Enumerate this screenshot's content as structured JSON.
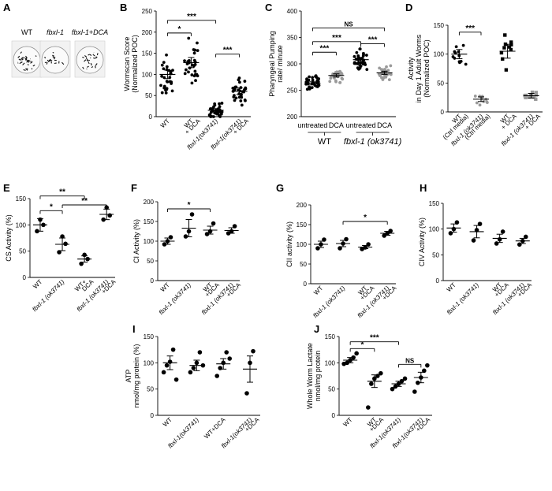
{
  "figure": {
    "panel_a": {
      "letter": "A",
      "labels": [
        "WT",
        "fbxl-1",
        "fbxl-1+DCA"
      ]
    }
  },
  "chart_data": [
    {
      "id": "B",
      "letter": "B",
      "type": "scatter",
      "ylabel_lines": [
        "Wormscan Score",
        "(Normalized POC)"
      ],
      "ylim": [
        0,
        250
      ],
      "yticks": [
        0,
        50,
        100,
        150,
        200,
        250
      ],
      "groups": [
        {
          "label": [
            "WT"
          ],
          "color": "#000000",
          "mean": 100,
          "sem": 10,
          "n": 28
        },
        {
          "label": [
            "WT",
            "+ DCA"
          ],
          "color": "#000000",
          "mean": 128,
          "sem": 12,
          "n": 30
        },
        {
          "label": [
            "fbxl-1(ok3741)"
          ],
          "color": "#000000",
          "mean": 15,
          "sem": 4,
          "n": 36
        },
        {
          "label": [
            "fbxl-1(ok3741)",
            "+ DCA"
          ],
          "color": "#000000",
          "mean": 60,
          "sem": 8,
          "n": 32
        }
      ],
      "sig": [
        {
          "from": 0,
          "to": 1,
          "text": "*",
          "y": 198
        },
        {
          "from": 0,
          "to": 2,
          "text": "***",
          "y": 228
        },
        {
          "from": 2,
          "to": 3,
          "text": "***",
          "y": 148
        }
      ]
    },
    {
      "id": "C",
      "letter": "C",
      "type": "scatter",
      "ylabel_lines": [
        "Pharyngeal Pumping",
        "rate/ minute"
      ],
      "ylim": [
        200,
        400
      ],
      "yticks": [
        200,
        250,
        300,
        350,
        400
      ],
      "groups": [
        {
          "label": [
            "untreated"
          ],
          "color": "#000000",
          "mean": 263,
          "sem": 3,
          "n": 34
        },
        {
          "label": [
            "DCA"
          ],
          "color": "#9a9a9a",
          "mean": 278,
          "sem": 3,
          "n": 30
        },
        {
          "label": [
            "untreated"
          ],
          "color": "#000000",
          "mean": 308,
          "sem": 4,
          "n": 36
        },
        {
          "label": [
            "DCA"
          ],
          "color": "#9a9a9a",
          "mean": 283,
          "sem": 3,
          "n": 30
        }
      ],
      "sig": [
        {
          "from": 0,
          "to": 1,
          "text": "***",
          "y": 322
        },
        {
          "from": 0,
          "to": 2,
          "text": "***",
          "y": 342
        },
        {
          "from": 0,
          "to": 3,
          "text": "NS",
          "y": 368
        },
        {
          "from": 2,
          "to": 3,
          "text": "***",
          "y": 338
        }
      ],
      "group_labels": [
        {
          "text": "WT",
          "span": [
            0,
            1
          ]
        },
        {
          "text": "fbxl-1 (ok3741)",
          "span": [
            2,
            3
          ]
        }
      ]
    },
    {
      "id": "D",
      "letter": "D",
      "type": "scatter",
      "ylabel_lines": [
        "Activity",
        "in Day 1 Adult Worms",
        "(Normalized POC)"
      ],
      "ylim": [
        0,
        150
      ],
      "yticks": [
        0,
        50,
        100,
        150
      ],
      "groups": [
        {
          "label": [
            "WT",
            "(Ctrl media)"
          ],
          "color": "#000000",
          "mean": 100,
          "sem": 8,
          "n": 12,
          "marker": "circle"
        },
        {
          "label": [
            "fbxl-1 (ok3741)",
            "(Ctrl media)"
          ],
          "color": "#9a9a9a",
          "mean": 22,
          "sem": 4,
          "n": 10,
          "marker": "circle"
        },
        {
          "label": [
            "WT",
            "+ DCA"
          ],
          "color": "#000000",
          "mean": 105,
          "sem": 12,
          "n": 10,
          "marker": "square"
        },
        {
          "label": [
            "fbxl-1 (ok3741)",
            "+ DCA"
          ],
          "color": "#9a9a9a",
          "mean": 28,
          "sem": 4,
          "n": 12,
          "marker": "square"
        }
      ],
      "sig": [
        {
          "from": 0,
          "to": 1,
          "text": "***",
          "y": 138
        }
      ]
    },
    {
      "id": "E",
      "letter": "E",
      "type": "scatter",
      "ylabel_lines": [
        "CS Activity (%)"
      ],
      "ylim": [
        0,
        150
      ],
      "yticks": [
        0,
        50,
        100,
        150
      ],
      "groups": [
        {
          "label": [
            "WT"
          ],
          "color": "#000000",
          "mean": 100,
          "sem": 12,
          "n": 3,
          "points": [
            88,
            110,
            100
          ]
        },
        {
          "label": [
            "fbxl-1 (ok3741)"
          ],
          "color": "#000000",
          "mean": 63,
          "sem": 12,
          "n": 3,
          "points": [
            48,
            78,
            64
          ]
        },
        {
          "label": [
            "WT+",
            "DCA"
          ],
          "color": "#000000",
          "mean": 35,
          "sem": 6,
          "n": 3,
          "points": [
            26,
            43,
            35
          ]
        },
        {
          "label": [
            "fbxl-1 (ok3741)",
            "+DCA"
          ],
          "color": "#000000",
          "mean": 120,
          "sem": 10,
          "n": 3,
          "points": [
            110,
            133,
            118
          ]
        }
      ],
      "sig": [
        {
          "from": 0,
          "to": 1,
          "text": "*",
          "y": 127
        },
        {
          "from": 1,
          "to": 3,
          "text": "**",
          "y": 138
        },
        {
          "from": 0,
          "to": 2,
          "text": "**",
          "y": 155
        }
      ]
    },
    {
      "id": "F",
      "letter": "F",
      "type": "scatter",
      "ylabel_lines": [
        "CI Activity (%)"
      ],
      "ylim": [
        0,
        200
      ],
      "yticks": [
        0,
        50,
        100,
        150,
        200
      ],
      "groups": [
        {
          "label": [
            "WT"
          ],
          "color": "#000000",
          "mean": 100,
          "sem": 8,
          "n": 3,
          "points": [
            92,
            100,
            110
          ]
        },
        {
          "label": [
            "fbxl-1 (ok3741)"
          ],
          "color": "#000000",
          "mean": 133,
          "sem": 22,
          "n": 3,
          "points": [
            112,
            125,
            168
          ]
        },
        {
          "label": [
            "WT",
            "+DCA"
          ],
          "color": "#000000",
          "mean": 128,
          "sem": 10,
          "n": 3,
          "points": [
            118,
            125,
            145
          ]
        },
        {
          "label": [
            "fbxl-1 (ok3741)",
            "+DCA"
          ],
          "color": "#000000",
          "mean": 127,
          "sem": 7,
          "n": 3,
          "points": [
            120,
            125,
            138
          ]
        }
      ],
      "sig": [
        {
          "from": 0,
          "to": 2,
          "text": "*",
          "y": 182
        }
      ]
    },
    {
      "id": "G",
      "letter": "G",
      "type": "scatter",
      "ylabel_lines": [
        "CII activity (%)"
      ],
      "ylim": [
        0,
        200
      ],
      "yticks": [
        0,
        50,
        100,
        150,
        200
      ],
      "groups": [
        {
          "label": [
            "WT"
          ],
          "color": "#000000",
          "mean": 100,
          "sem": 8,
          "n": 3,
          "points": [
            90,
            100,
            112
          ]
        },
        {
          "label": [
            "fbxl-1 (ok3741)"
          ],
          "color": "#000000",
          "mean": 102,
          "sem": 8,
          "n": 3,
          "points": [
            90,
            102,
            113
          ]
        },
        {
          "label": [
            "WT",
            "+DCA"
          ],
          "color": "#000000",
          "mean": 93,
          "sem": 4,
          "n": 3,
          "points": [
            88,
            92,
            100
          ]
        },
        {
          "label": [
            "fbxl-1 (ok3741)",
            "+DCA"
          ],
          "color": "#000000",
          "mean": 128,
          "sem": 5,
          "n": 3,
          "points": [
            122,
            128,
            134
          ]
        }
      ],
      "sig": [
        {
          "from": 1,
          "to": 3,
          "text": "*",
          "y": 158
        }
      ]
    },
    {
      "id": "H",
      "letter": "H",
      "type": "scatter",
      "ylabel_lines": [
        "CIV Activity (%)"
      ],
      "ylim": [
        0,
        150
      ],
      "yticks": [
        0,
        50,
        100,
        150
      ],
      "groups": [
        {
          "label": [
            "WT"
          ],
          "color": "#000000",
          "mean": 102,
          "sem": 8,
          "n": 3,
          "points": [
            92,
            100,
            113
          ]
        },
        {
          "label": [
            "fbxl-1 (ok3741)"
          ],
          "color": "#000000",
          "mean": 95,
          "sem": 12,
          "n": 3,
          "points": [
            78,
            98,
            110
          ]
        },
        {
          "label": [
            "WT",
            "+DCA"
          ],
          "color": "#000000",
          "mean": 82,
          "sem": 8,
          "n": 3,
          "points": [
            72,
            80,
            95
          ]
        },
        {
          "label": [
            "fbxl-1 (ok3741)",
            "+DCA"
          ],
          "color": "#000000",
          "mean": 77,
          "sem": 5,
          "n": 3,
          "points": [
            70,
            77,
            85
          ]
        }
      ],
      "sig": []
    },
    {
      "id": "I",
      "letter": "I",
      "type": "scatter",
      "ylabel_lines": [
        "ATP",
        "nmol/mg protein (%)"
      ],
      "ylim": [
        0,
        150
      ],
      "yticks": [
        0,
        50,
        100,
        150
      ],
      "groups": [
        {
          "label": [
            "WT"
          ],
          "color": "#000000",
          "mean": 100,
          "sem": 13,
          "n": 5,
          "points": [
            82,
            95,
            102,
            125,
            68
          ]
        },
        {
          "label": [
            "fbxl-1(ok3741)"
          ],
          "color": "#000000",
          "mean": 95,
          "sem": 10,
          "n": 5,
          "points": [
            82,
            90,
            100,
            120,
            95
          ]
        },
        {
          "label": [
            "WT+DCA"
          ],
          "color": "#000000",
          "mean": 98,
          "sem": 10,
          "n": 5,
          "points": [
            75,
            90,
            100,
            120,
            108
          ]
        },
        {
          "label": [
            "fbxl-1(ok3741)",
            "+DCA"
          ],
          "color": "#000000",
          "mean": 88,
          "sem": 25,
          "n": 3,
          "points": [
            42,
            100,
            122
          ]
        }
      ],
      "sig": []
    },
    {
      "id": "J",
      "letter": "J",
      "type": "scatter",
      "ylabel_lines": [
        "Whole Worm Lactate",
        "nmol/mg protein"
      ],
      "ylim": [
        0,
        150
      ],
      "yticks": [
        0,
        50,
        100,
        150
      ],
      "groups": [
        {
          "label": [
            "WT"
          ],
          "color": "#000000",
          "mean": 105,
          "sem": 5,
          "n": 5,
          "points": [
            98,
            100,
            105,
            110,
            118
          ]
        },
        {
          "label": [
            "WT",
            "+DCA"
          ],
          "color": "#000000",
          "mean": 65,
          "sem": 12,
          "n": 5,
          "points": [
            15,
            60,
            70,
            75,
            80
          ]
        },
        {
          "label": [
            "fbxl-1(ok3741)"
          ],
          "color": "#000000",
          "mean": 60,
          "sem": 5,
          "n": 5,
          "points": [
            50,
            55,
            60,
            65,
            70
          ]
        },
        {
          "label": [
            "fbxl-1(ok3741)",
            "+DCA"
          ],
          "color": "#000000",
          "mean": 72,
          "sem": 10,
          "n": 5,
          "points": [
            45,
            62,
            72,
            85,
            95
          ]
        }
      ],
      "sig": [
        {
          "from": 0,
          "to": 1,
          "text": "*",
          "y": 127
        },
        {
          "from": 0,
          "to": 2,
          "text": "***",
          "y": 140
        },
        {
          "from": 2,
          "to": 3,
          "text": "NS",
          "y": 97
        }
      ]
    }
  ]
}
